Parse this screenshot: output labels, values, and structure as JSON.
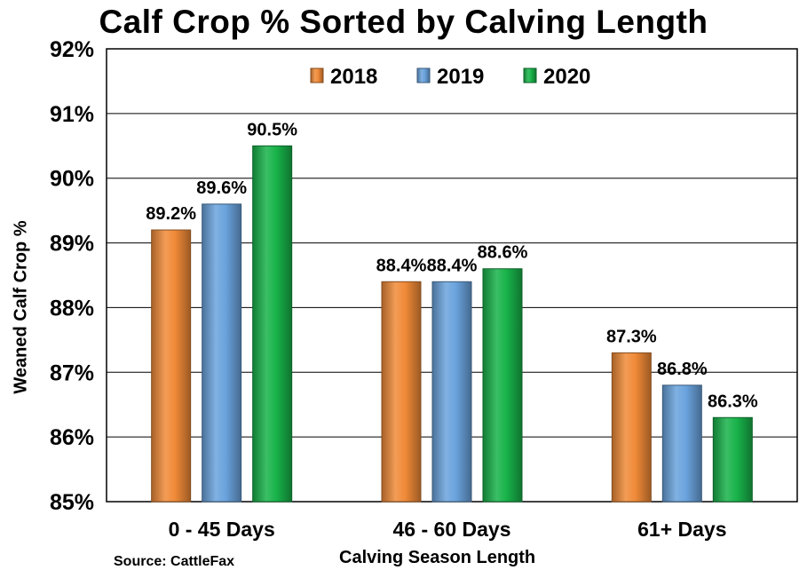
{
  "chart_data": {
    "type": "bar",
    "title": "Calf Crop % Sorted by Calving Length",
    "xlabel": "Calving Season Length",
    "ylabel": "Weaned Calf Crop %",
    "source": "Source: CattleFax",
    "categories": [
      "0 - 45 Days",
      "46 - 60 Days",
      "61+ Days"
    ],
    "series": [
      {
        "name": "2018",
        "color": "#f08a38",
        "values": [
          89.2,
          88.4,
          87.3
        ],
        "labels": [
          "89.2%",
          "88.4%",
          "87.3%"
        ]
      },
      {
        "name": "2019",
        "color": "#6aa3dd",
        "values": [
          89.6,
          88.4,
          86.8
        ],
        "labels": [
          "89.6%",
          "88.4%",
          "86.8%"
        ]
      },
      {
        "name": "2020",
        "color": "#18b34a",
        "values": [
          90.5,
          88.6,
          86.3
        ],
        "labels": [
          "90.5%",
          "88.6%",
          "86.3%"
        ]
      }
    ],
    "ylim": [
      85,
      92
    ],
    "yticks": [
      "85%",
      "86%",
      "87%",
      "88%",
      "89%",
      "90%",
      "91%",
      "92%"
    ],
    "grid": true,
    "legend_position": "top-center"
  }
}
